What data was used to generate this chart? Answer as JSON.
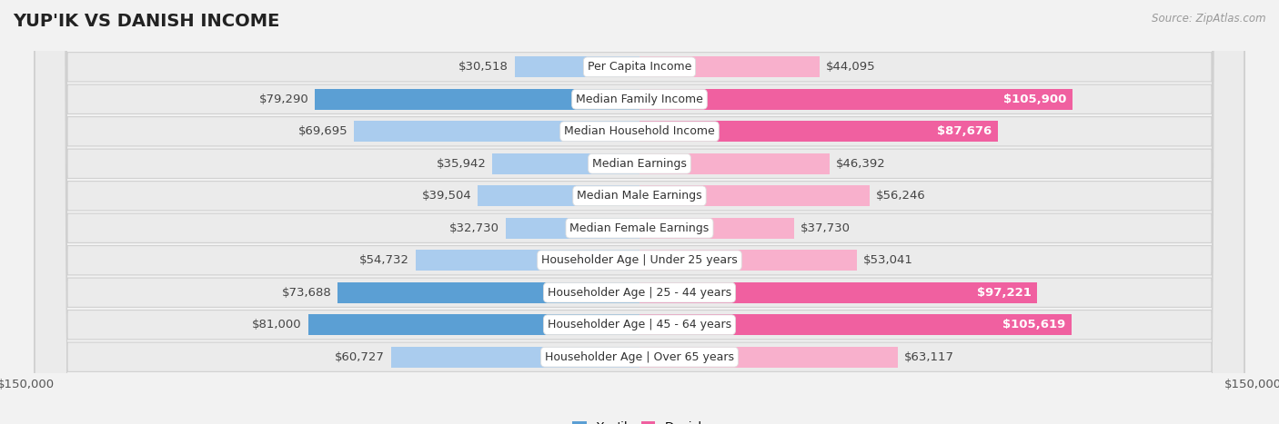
{
  "title": "YUP'IK VS DANISH INCOME",
  "source": "Source: ZipAtlas.com",
  "categories": [
    "Per Capita Income",
    "Median Family Income",
    "Median Household Income",
    "Median Earnings",
    "Median Male Earnings",
    "Median Female Earnings",
    "Householder Age | Under 25 years",
    "Householder Age | 25 - 44 years",
    "Householder Age | 45 - 64 years",
    "Householder Age | Over 65 years"
  ],
  "yupik_values": [
    30518,
    79290,
    69695,
    35942,
    39504,
    32730,
    54732,
    73688,
    81000,
    60727
  ],
  "danish_values": [
    44095,
    105900,
    87676,
    46392,
    56246,
    37730,
    53041,
    97221,
    105619,
    63117
  ],
  "yupik_labels": [
    "$30,518",
    "$79,290",
    "$69,695",
    "$35,942",
    "$39,504",
    "$32,730",
    "$54,732",
    "$73,688",
    "$81,000",
    "$60,727"
  ],
  "danish_labels": [
    "$44,095",
    "$105,900",
    "$87,676",
    "$46,392",
    "$56,246",
    "$37,730",
    "$53,041",
    "$97,221",
    "$105,619",
    "$63,117"
  ],
  "yupik_color_dark": "#5b9fd4",
  "yupik_color_light": "#aaccee",
  "danish_color_dark": "#f060a0",
  "danish_color_light": "#f8b0cc",
  "background_color": "#f2f2f2",
  "row_bg_color": "#e8e8e8",
  "max_value": 150000,
  "dark_threshold": 70000,
  "title_fontsize": 14,
  "label_fontsize": 9.5,
  "category_fontsize": 9
}
